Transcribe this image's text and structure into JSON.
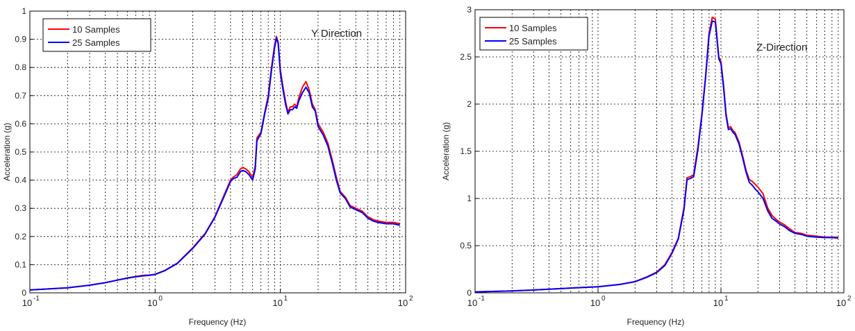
{
  "chart_data": [
    {
      "type": "line",
      "xscale": "log",
      "xlim": [
        0.1,
        100
      ],
      "ylim": [
        0,
        1
      ],
      "xlabel": "Frequency (Hz)",
      "ylabel": "Acceleration (g)",
      "annotation": "Y Direction",
      "grid": true,
      "legend_position": "top-left",
      "yticks": [
        "0",
        "0.1",
        "0.2",
        "0.3",
        "0.4",
        "0.5",
        "0.6",
        "0.7",
        "0.8",
        "0.9",
        "1"
      ],
      "xticks": [
        {
          "base": "10",
          "exp": "-1"
        },
        {
          "base": "10",
          "exp": "0"
        },
        {
          "base": "10",
          "exp": "1"
        },
        {
          "base": "10",
          "exp": "2"
        }
      ],
      "series": [
        {
          "name": "10 Samples",
          "color": "#ff0000",
          "x": [
            0.1,
            0.2,
            0.3,
            0.4,
            0.5,
            0.6,
            0.7,
            0.8,
            0.9,
            1.0,
            1.2,
            1.5,
            2.0,
            2.5,
            3.0,
            3.5,
            4.0,
            4.2,
            4.5,
            4.8,
            5.0,
            5.3,
            5.6,
            6.0,
            6.3,
            6.5,
            7.0,
            7.5,
            8.0,
            8.5,
            9.0,
            9.3,
            9.6,
            10.0,
            10.5,
            11.0,
            11.5,
            12.0,
            12.5,
            13.0,
            13.5,
            14.0,
            15.0,
            16.0,
            17.0,
            18.0,
            19.0,
            20.0,
            22.0,
            24.0,
            26.0,
            28.0,
            30.0,
            33.0,
            36.0,
            40.0,
            45.0,
            50.0,
            55.0,
            60.0,
            70.0,
            80.0,
            90.0
          ],
          "y": [
            0.01,
            0.018,
            0.027,
            0.036,
            0.045,
            0.053,
            0.058,
            0.062,
            0.063,
            0.066,
            0.08,
            0.105,
            0.16,
            0.21,
            0.27,
            0.34,
            0.4,
            0.41,
            0.42,
            0.44,
            0.445,
            0.44,
            0.43,
            0.41,
            0.45,
            0.55,
            0.57,
            0.64,
            0.7,
            0.8,
            0.88,
            0.91,
            0.89,
            0.79,
            0.73,
            0.68,
            0.64,
            0.66,
            0.66,
            0.67,
            0.66,
            0.69,
            0.73,
            0.75,
            0.72,
            0.67,
            0.65,
            0.6,
            0.57,
            0.53,
            0.47,
            0.41,
            0.36,
            0.34,
            0.31,
            0.3,
            0.29,
            0.27,
            0.26,
            0.255,
            0.25,
            0.25,
            0.245
          ]
        },
        {
          "name": "25 Samples",
          "color": "#0000ff",
          "x": [
            0.1,
            0.2,
            0.3,
            0.4,
            0.5,
            0.6,
            0.7,
            0.8,
            0.9,
            1.0,
            1.2,
            1.5,
            2.0,
            2.5,
            3.0,
            3.5,
            4.0,
            4.2,
            4.5,
            4.8,
            5.0,
            5.3,
            5.6,
            6.0,
            6.3,
            6.5,
            7.0,
            7.5,
            8.0,
            8.5,
            9.0,
            9.3,
            9.6,
            10.0,
            10.5,
            11.0,
            11.5,
            12.0,
            12.5,
            13.0,
            13.5,
            14.0,
            15.0,
            16.0,
            17.0,
            18.0,
            19.0,
            20.0,
            22.0,
            24.0,
            26.0,
            28.0,
            30.0,
            33.0,
            36.0,
            40.0,
            45.0,
            50.0,
            55.0,
            60.0,
            70.0,
            80.0,
            90.0
          ],
          "y": [
            0.01,
            0.018,
            0.027,
            0.036,
            0.045,
            0.052,
            0.057,
            0.06,
            0.062,
            0.065,
            0.079,
            0.104,
            0.158,
            0.208,
            0.268,
            0.335,
            0.395,
            0.405,
            0.41,
            0.43,
            0.435,
            0.43,
            0.42,
            0.4,
            0.44,
            0.54,
            0.565,
            0.635,
            0.69,
            0.79,
            0.87,
            0.905,
            0.885,
            0.78,
            0.72,
            0.67,
            0.635,
            0.65,
            0.65,
            0.66,
            0.655,
            0.68,
            0.71,
            0.73,
            0.71,
            0.66,
            0.645,
            0.59,
            0.56,
            0.52,
            0.46,
            0.4,
            0.355,
            0.335,
            0.305,
            0.295,
            0.285,
            0.265,
            0.255,
            0.25,
            0.245,
            0.245,
            0.24
          ]
        }
      ]
    },
    {
      "type": "line",
      "xscale": "log",
      "xlim": [
        0.1,
        100
      ],
      "ylim": [
        0,
        3
      ],
      "xlabel": "Frequency (Hz)",
      "ylabel": "Acceleration (g)",
      "annotation": "Z-Direction",
      "grid": true,
      "legend_position": "top-left",
      "yticks": [
        "0",
        "0.5",
        "1",
        "1.5",
        "2",
        "2.5",
        "3"
      ],
      "xticks": [
        {
          "base": "10",
          "exp": "-1"
        },
        {
          "base": "10",
          "exp": "0"
        },
        {
          "base": "10",
          "exp": "1"
        },
        {
          "base": "10",
          "exp": "2"
        }
      ],
      "series": [
        {
          "name": "10 Samples",
          "color": "#ff0000",
          "x": [
            0.1,
            0.2,
            0.3,
            0.5,
            0.7,
            1.0,
            1.5,
            2.0,
            2.5,
            3.0,
            3.5,
            4.0,
            4.5,
            5.0,
            5.3,
            5.6,
            6.0,
            6.5,
            7.0,
            7.5,
            8.0,
            8.5,
            9.0,
            9.3,
            9.6,
            10.0,
            10.5,
            11.0,
            11.5,
            12.0,
            12.5,
            13.0,
            14.0,
            15.0,
            16.0,
            17.0,
            18.0,
            19.0,
            20.0,
            22.0,
            24.0,
            26.0,
            28.0,
            30.0,
            33.0,
            36.0,
            40.0,
            45.0,
            50.0,
            60.0,
            70.0,
            80.0,
            90.0
          ],
          "y": [
            0.01,
            0.02,
            0.03,
            0.045,
            0.055,
            0.065,
            0.09,
            0.12,
            0.17,
            0.22,
            0.3,
            0.43,
            0.58,
            0.9,
            1.22,
            1.23,
            1.25,
            1.55,
            1.9,
            2.3,
            2.75,
            2.92,
            2.9,
            2.7,
            2.5,
            2.45,
            2.2,
            1.9,
            1.75,
            1.76,
            1.72,
            1.7,
            1.6,
            1.45,
            1.3,
            1.2,
            1.18,
            1.15,
            1.12,
            1.05,
            0.9,
            0.82,
            0.78,
            0.75,
            0.72,
            0.68,
            0.64,
            0.63,
            0.61,
            0.6,
            0.59,
            0.59,
            0.59
          ]
        },
        {
          "name": "25 Samples",
          "color": "#0000ff",
          "x": [
            0.1,
            0.2,
            0.3,
            0.5,
            0.7,
            1.0,
            1.5,
            2.0,
            2.5,
            3.0,
            3.5,
            4.0,
            4.5,
            5.0,
            5.3,
            5.6,
            6.0,
            6.5,
            7.0,
            7.5,
            8.0,
            8.5,
            9.0,
            9.3,
            9.6,
            10.0,
            10.5,
            11.0,
            11.5,
            12.0,
            12.5,
            13.0,
            14.0,
            15.0,
            16.0,
            17.0,
            18.0,
            19.0,
            20.0,
            22.0,
            24.0,
            26.0,
            28.0,
            30.0,
            33.0,
            36.0,
            40.0,
            45.0,
            50.0,
            60.0,
            70.0,
            80.0,
            90.0
          ],
          "y": [
            0.01,
            0.02,
            0.03,
            0.045,
            0.055,
            0.065,
            0.088,
            0.118,
            0.165,
            0.215,
            0.29,
            0.42,
            0.57,
            0.88,
            1.2,
            1.21,
            1.23,
            1.52,
            1.88,
            2.28,
            2.72,
            2.88,
            2.87,
            2.68,
            2.48,
            2.43,
            2.17,
            1.88,
            1.73,
            1.74,
            1.7,
            1.68,
            1.58,
            1.43,
            1.28,
            1.17,
            1.14,
            1.1,
            1.07,
            1.0,
            0.87,
            0.79,
            0.76,
            0.73,
            0.7,
            0.66,
            0.63,
            0.62,
            0.6,
            0.59,
            0.585,
            0.585,
            0.58
          ]
        }
      ]
    }
  ]
}
